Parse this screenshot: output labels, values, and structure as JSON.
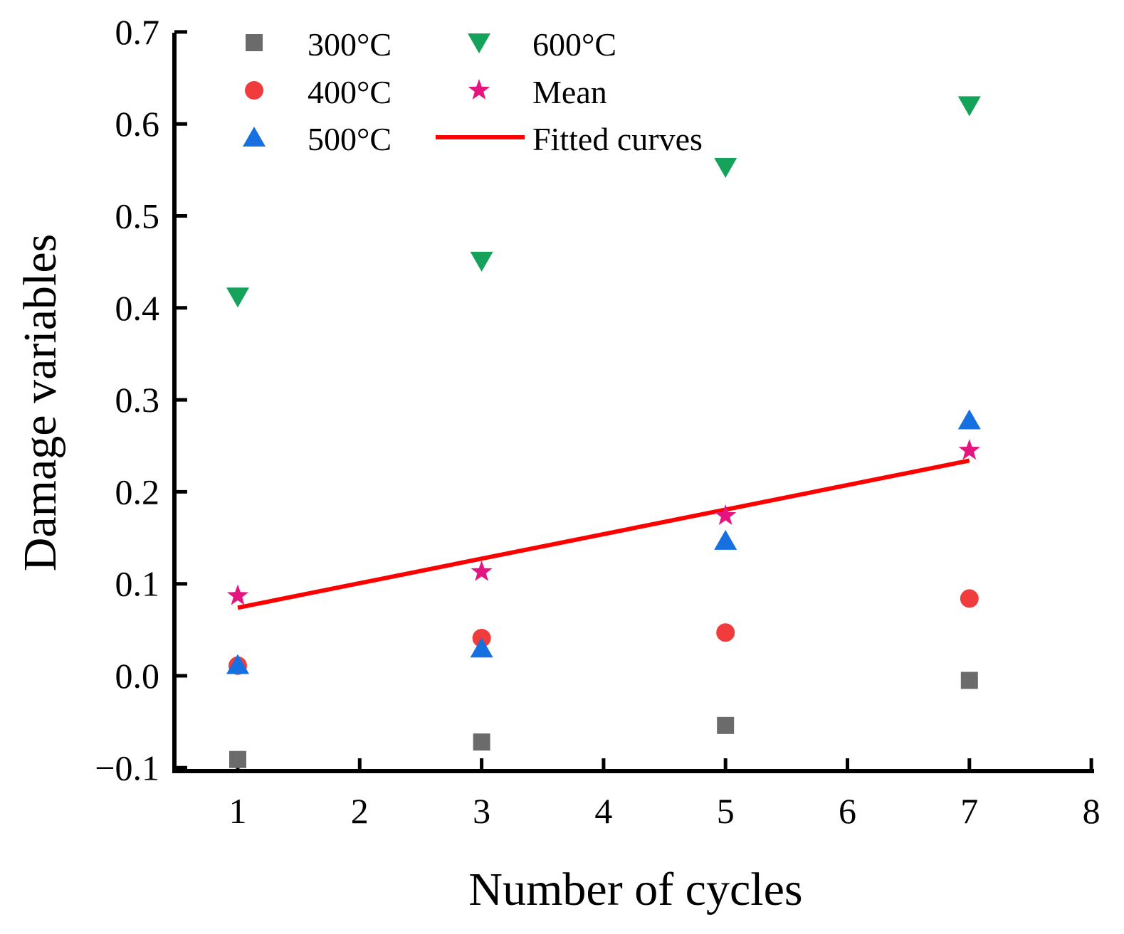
{
  "chart_data": {
    "type": "scatter",
    "title": "",
    "xlabel": "Number of cycles",
    "ylabel": "Damage variables",
    "xlim": [
      0.5,
      8
    ],
    "ylim": [
      -0.1,
      0.7
    ],
    "xticks": [
      1,
      2,
      3,
      4,
      5,
      6,
      7,
      8
    ],
    "xtick_labels": [
      "1",
      "2",
      "3",
      "4",
      "5",
      "6",
      "7",
      "8"
    ],
    "yticks": [
      -0.1,
      0.0,
      0.1,
      0.2,
      0.3,
      0.4,
      0.5,
      0.6,
      0.7
    ],
    "ytick_labels": [
      "−0.1",
      "0.0",
      "0.1",
      "0.2",
      "0.3",
      "0.4",
      "0.5",
      "0.6",
      "0.7"
    ],
    "grid": false,
    "legend_position": "top-left",
    "series": [
      {
        "name": "300°C",
        "marker": "square",
        "color": "#6b6b6b",
        "x": [
          1,
          3,
          5,
          7
        ],
        "y": [
          -0.091,
          -0.072,
          -0.054,
          -0.005
        ]
      },
      {
        "name": "400°C",
        "marker": "circle",
        "color": "#f03c3c",
        "x": [
          1,
          3,
          5,
          7
        ],
        "y": [
          0.011,
          0.041,
          0.047,
          0.084
        ]
      },
      {
        "name": "500°C",
        "marker": "triangle-up",
        "color": "#1670e0",
        "x": [
          1,
          3,
          5,
          7
        ],
        "y": [
          0.012,
          0.03,
          0.147,
          0.278
        ]
      },
      {
        "name": "600°C",
        "marker": "triangle-down",
        "color": "#15a35c",
        "x": [
          1,
          3,
          5,
          7
        ],
        "y": [
          0.412,
          0.451,
          0.553,
          0.62
        ]
      },
      {
        "name": "Mean",
        "marker": "star",
        "color": "#e5157f",
        "x": [
          1,
          3,
          5,
          7
        ],
        "y": [
          0.087,
          0.113,
          0.174,
          0.245
        ]
      }
    ],
    "fitted_curve": {
      "name": "Fitted curves",
      "color": "#ff0000",
      "x": [
        1,
        7
      ],
      "y": [
        0.074,
        0.234
      ]
    }
  }
}
